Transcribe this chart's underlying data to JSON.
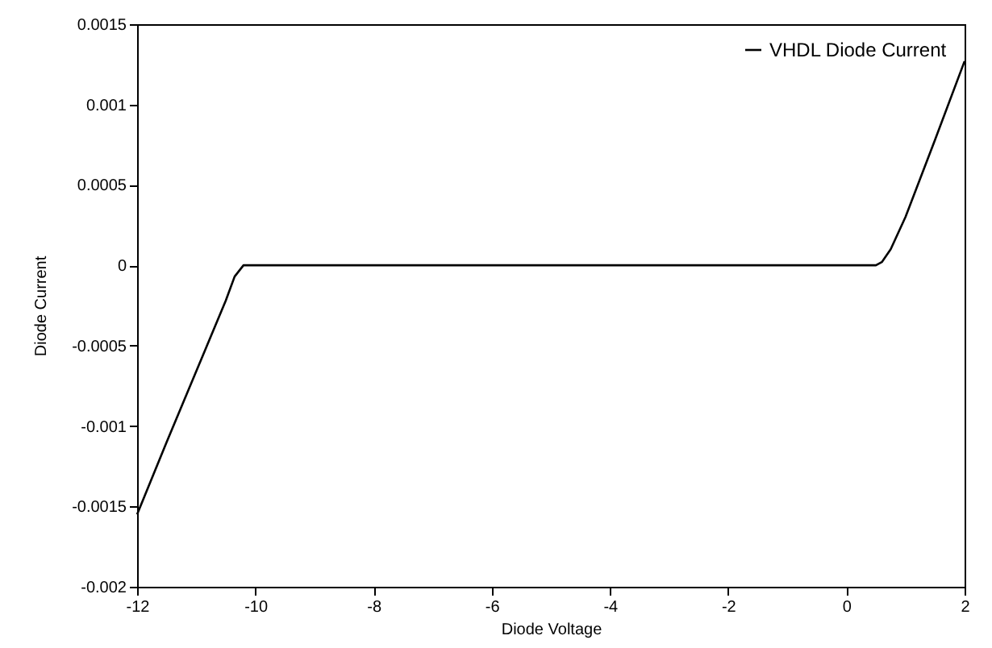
{
  "chart_data": {
    "type": "line",
    "xlabel": "Diode Voltage",
    "ylabel": "Diode Current",
    "x": [
      -12,
      -11.5,
      -11,
      -10.5,
      -10.35,
      -10.2,
      0.5,
      0.6,
      0.75,
      1,
      1.5,
      2
    ],
    "series": [
      {
        "name": "VHDL Diode Current",
        "color": "#000000",
        "values": [
          -0.00155,
          -0.0011,
          -0.00066,
          -0.00022,
          -7e-05,
          0,
          0,
          2e-05,
          0.0001,
          0.0003,
          0.00078,
          0.00127
        ]
      }
    ],
    "xlim": [
      -12,
      2
    ],
    "xticks": [
      -12,
      -10,
      -8,
      -6,
      -4,
      -2,
      0,
      2
    ],
    "ylim": [
      -0.002,
      0.0015
    ],
    "yticks": [
      -0.002,
      -0.0015,
      -0.001,
      -0.0005,
      0,
      0.0005,
      0.001,
      0.0015
    ],
    "grid": false,
    "legend": "top right",
    "marker": "none",
    "line_style": "solid"
  }
}
